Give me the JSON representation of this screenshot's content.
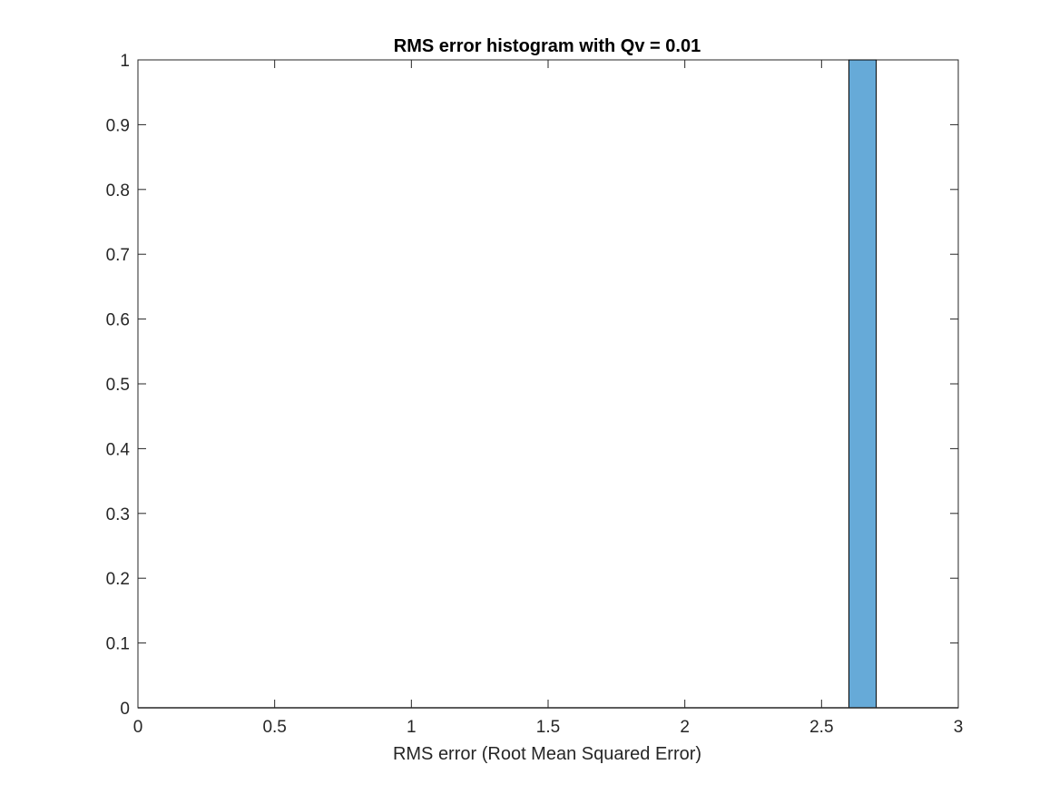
{
  "chart_data": {
    "type": "bar",
    "title": "RMS error histogram with Qv = 0.01",
    "xlabel": "RMS error (Root Mean Squared Error)",
    "ylabel": "",
    "xlim": [
      0,
      3
    ],
    "ylim": [
      0,
      1
    ],
    "xticks": [
      0,
      0.5,
      1,
      1.5,
      2,
      2.5,
      3
    ],
    "xtick_labels": [
      "0",
      "0.5",
      "1",
      "1.5",
      "2",
      "2.5",
      "3"
    ],
    "yticks": [
      0,
      0.1,
      0.2,
      0.3,
      0.4,
      0.5,
      0.6,
      0.7,
      0.8,
      0.9,
      1
    ],
    "ytick_labels": [
      "0",
      "0.1",
      "0.2",
      "0.3",
      "0.4",
      "0.5",
      "0.6",
      "0.7",
      "0.8",
      "0.9",
      "1"
    ],
    "grid": false,
    "bins": [
      {
        "x_start": 2.6,
        "x_end": 2.7,
        "count": 1
      }
    ],
    "colors": {
      "bar_fill": "#66aad8",
      "bar_edge": "#000000",
      "axes": "#262626"
    }
  }
}
